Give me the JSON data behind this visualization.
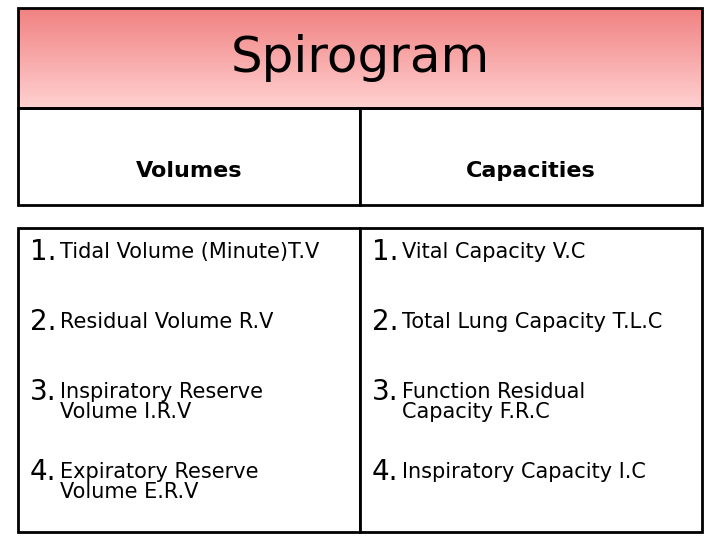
{
  "title": "Spirogram",
  "title_fontsize": 36,
  "header_left": "Volumes",
  "header_right": "Capacities",
  "header_fontsize": 16,
  "header_bg": "#FFFFFF",
  "title_bg_top": "#F08080",
  "title_bg_bottom": "#FFD0D0",
  "body_bg": "#FFFFFF",
  "border_color": "#000000",
  "text_color": "#000000",
  "left_items_line1": [
    "1.",
    "2.",
    "3.",
    "4."
  ],
  "left_items_line2": [
    "Tidal Volume (Minute)T.V",
    "Residual Volume R.V",
    "Inspiratory Reserve",
    "Expiratory Reserve"
  ],
  "left_items_line3": [
    "",
    "",
    "Volume I.R.V",
    "Volume E.R.V"
  ],
  "right_items_line1": [
    "1.",
    "2.",
    "3.",
    "4."
  ],
  "right_items_line2": [
    "Vital Capacity V.C",
    "Total Lung Capacity T.L.C",
    "Function Residual",
    "Inspiratory Capacity I.C"
  ],
  "right_items_line3": [
    "",
    "",
    "Capacity F.R.C",
    ""
  ],
  "item_fontsize": 15,
  "num_fontsize": 20,
  "fig_width": 7.2,
  "fig_height": 5.4,
  "dpi": 100
}
